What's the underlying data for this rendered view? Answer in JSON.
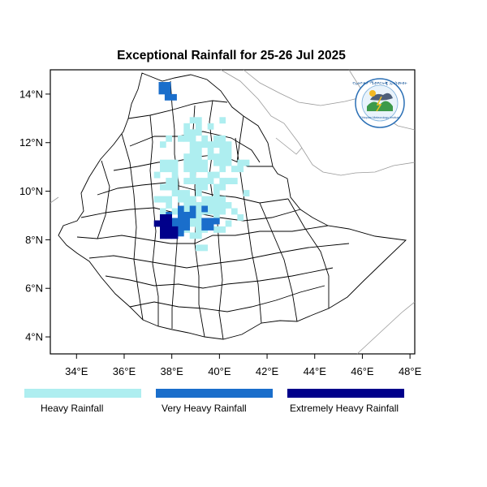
{
  "title": "Exceptional Rainfall for 25-26 Jul 2025",
  "axes": {
    "lon_ticks": [
      {
        "value": 34,
        "label": "34°E"
      },
      {
        "value": 36,
        "label": "36°E"
      },
      {
        "value": 38,
        "label": "38°E"
      },
      {
        "value": 40,
        "label": "40°E"
      },
      {
        "value": 42,
        "label": "42°E"
      },
      {
        "value": 44,
        "label": "44°E"
      },
      {
        "value": 46,
        "label": "46°E"
      },
      {
        "value": 48,
        "label": "48°E"
      }
    ],
    "lat_ticks": [
      {
        "value": 4,
        "label": "4°N"
      },
      {
        "value": 6,
        "label": "6°N"
      },
      {
        "value": 8,
        "label": "8°N"
      },
      {
        "value": 10,
        "label": "10°N"
      },
      {
        "value": 12,
        "label": "12°N"
      },
      {
        "value": 14,
        "label": "14°N"
      }
    ],
    "lon_range": [
      32.9,
      48.2
    ],
    "lat_range": [
      3.3,
      15.0
    ]
  },
  "legend": [
    {
      "label": "Heavy Rainfall",
      "color": "#aeeef0"
    },
    {
      "label": "Very Heavy Rainfall",
      "color": "#1a6ecb"
    },
    {
      "label": "Extremely Heavy Rainfall",
      "color": "#00008b"
    }
  ],
  "colors": {
    "border": "#000000",
    "neighbor_border": "#999999",
    "heavy": "#aeeef0",
    "very_heavy": "#1a6ecb",
    "extreme": "#00008b"
  },
  "logo": {
    "icon": "ethiopian-meteorology-institute-logo-icon",
    "text_top": "የኢትዮጵያ ሜቲዎሮሎጂ ኢንስቲትዩት",
    "text_bottom": "Ethiopian Meteorology Institute"
  },
  "chart_data": {
    "type": "heatmap",
    "title": "Exceptional Rainfall for 25-26 Jul 2025",
    "legend_position": "bottom",
    "levels": [
      "Heavy Rainfall",
      "Very Heavy Rainfall",
      "Extremely Heavy Rainfall"
    ],
    "rain_areas": [
      {
        "level": "Heavy Rainfall",
        "lon": [
          37.0,
          41.2
        ],
        "lat": [
          7.3,
          13.2
        ]
      },
      {
        "level": "Very Heavy Rainfall",
        "lon": [
          37.0,
          40.0
        ],
        "lat": [
          7.9,
          9.3
        ]
      },
      {
        "level": "Very Heavy Rainfall",
        "lon": [
          37.2,
          38.1
        ],
        "lat": [
          13.5,
          14.5
        ]
      },
      {
        "level": "Extremely Heavy Rainfall",
        "lon": [
          37.0,
          38.6
        ],
        "lat": [
          7.8,
          8.9
        ]
      }
    ]
  }
}
